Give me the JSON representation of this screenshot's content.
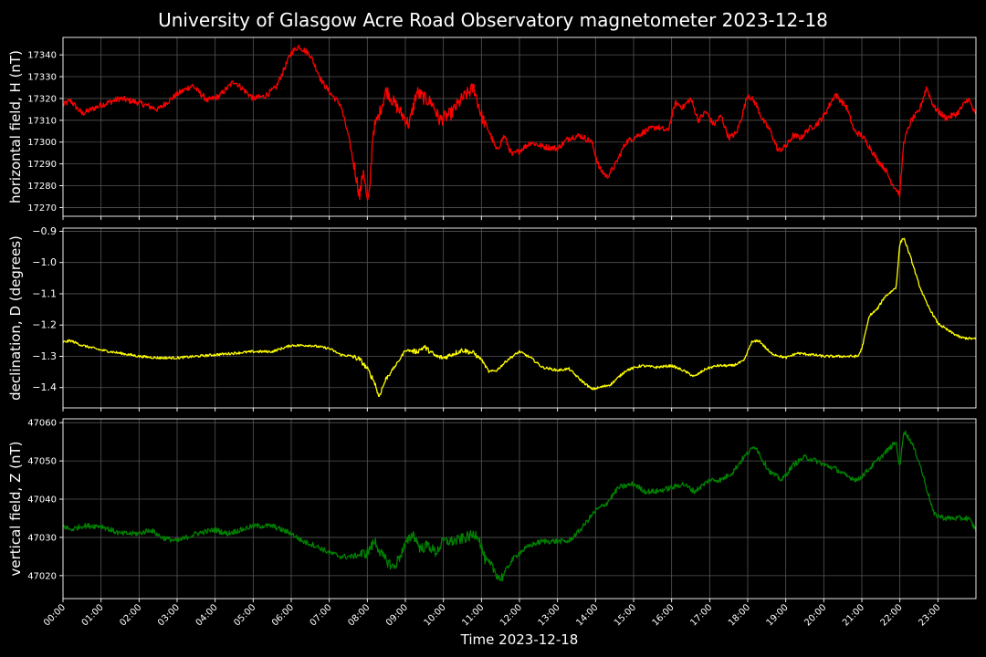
{
  "title": "University of Glasgow Acre Road Observatory magnetometer 2023-12-18",
  "xlabel": "Time 2023-12-18",
  "x_tick_labels": [
    "00:00",
    "01:00",
    "02:00",
    "03:00",
    "04:00",
    "05:00",
    "06:00",
    "07:00",
    "08:00",
    "09:00",
    "10:00",
    "11:00",
    "12:00",
    "13:00",
    "14:00",
    "15:00",
    "16:00",
    "17:00",
    "18:00",
    "19:00",
    "20:00",
    "21:00",
    "22:00",
    "23:00"
  ],
  "chart_data": [
    {
      "type": "line",
      "ylabel": "horizontal field, H (nT)",
      "color": "#ff0000",
      "xlim_hours": [
        0,
        24
      ],
      "ylim": [
        17266,
        17348
      ],
      "yticks": [
        17270,
        17280,
        17290,
        17300,
        17310,
        17320,
        17330,
        17340
      ],
      "grid": true,
      "x_hours": [
        0,
        0.2,
        0.5,
        1,
        1.5,
        2,
        2.5,
        3,
        3.4,
        3.8,
        4.1,
        4.5,
        5,
        5.3,
        5.6,
        6,
        6.2,
        6.5,
        6.8,
        7,
        7.3,
        7.5,
        7.7,
        7.8,
        7.9,
        8,
        8.05,
        8.15,
        8.3,
        8.5,
        8.7,
        8.9,
        9.1,
        9.3,
        9.5,
        9.7,
        9.9,
        10.2,
        10.5,
        10.8,
        11,
        11.2,
        11.4,
        11.6,
        11.8,
        12,
        12.3,
        12.6,
        13,
        13.3,
        13.6,
        13.9,
        14.1,
        14.3,
        14.5,
        14.8,
        15,
        15.3,
        15.6,
        15.9,
        16.1,
        16.3,
        16.5,
        16.7,
        16.9,
        17.1,
        17.3,
        17.5,
        17.7,
        17.85,
        18,
        18.2,
        18.4,
        18.6,
        18.8,
        19,
        19.2,
        19.4,
        19.6,
        19.8,
        20,
        20.3,
        20.6,
        20.8,
        21,
        21.2,
        21.4,
        21.6,
        21.8,
        22,
        22.1,
        22.3,
        22.5,
        22.7,
        22.9,
        23.2,
        23.5,
        23.8,
        24
      ],
      "values": [
        17317,
        17319,
        17313,
        17317,
        17320,
        17318,
        17315,
        17322,
        17326,
        17319,
        17321,
        17328,
        17320,
        17321,
        17325,
        17341,
        17344,
        17340,
        17328,
        17323,
        17317,
        17303,
        17285,
        17275,
        17288,
        17272,
        17275,
        17305,
        17312,
        17324,
        17318,
        17313,
        17308,
        17323,
        17320,
        17318,
        17310,
        17313,
        17320,
        17325,
        17312,
        17305,
        17296,
        17303,
        17294,
        17296,
        17300,
        17298,
        17297,
        17302,
        17303,
        17300,
        17288,
        17284,
        17289,
        17300,
        17302,
        17305,
        17307,
        17305,
        17318,
        17316,
        17320,
        17310,
        17314,
        17308,
        17312,
        17302,
        17304,
        17312,
        17322,
        17318,
        17310,
        17305,
        17296,
        17298,
        17303,
        17302,
        17306,
        17308,
        17312,
        17322,
        17316,
        17305,
        17303,
        17298,
        17292,
        17288,
        17281,
        17276,
        17300,
        17310,
        17314,
        17325,
        17316,
        17311,
        17313,
        17320,
        17312
      ]
    },
    {
      "type": "line",
      "ylabel": "declination, D (degrees)",
      "color": "#ffff00",
      "xlim_hours": [
        0,
        24
      ],
      "ylim": [
        -1.465,
        -0.89
      ],
      "yticks": [
        -1.4,
        -1.3,
        -1.2,
        -1.1,
        -1.0,
        -0.9
      ],
      "grid": true,
      "x_hours": [
        0,
        0.2,
        0.5,
        1,
        1.5,
        2,
        2.5,
        3,
        3.5,
        4,
        4.5,
        5,
        5.5,
        6,
        6.5,
        7,
        7.3,
        7.6,
        7.8,
        8,
        8.2,
        8.3,
        8.5,
        8.8,
        9,
        9.3,
        9.5,
        9.8,
        10,
        10.3,
        10.5,
        10.8,
        11,
        11.2,
        11.4,
        11.7,
        12,
        12.3,
        12.6,
        13,
        13.3,
        13.6,
        13.9,
        14.1,
        14.4,
        14.8,
        15.2,
        15.6,
        16,
        16.3,
        16.6,
        16.9,
        17.2,
        17.6,
        17.9,
        18.1,
        18.3,
        18.6,
        19,
        19.3,
        19.7,
        20,
        20.5,
        20.9,
        21,
        21.2,
        21.4,
        21.6,
        21.9,
        22,
        22.1,
        22.3,
        22.5,
        22.7,
        23,
        23.3,
        23.6,
        24
      ],
      "values": [
        -1.255,
        -1.25,
        -1.265,
        -1.28,
        -1.29,
        -1.3,
        -1.305,
        -1.305,
        -1.3,
        -1.295,
        -1.29,
        -1.285,
        -1.285,
        -1.265,
        -1.265,
        -1.275,
        -1.295,
        -1.3,
        -1.31,
        -1.34,
        -1.385,
        -1.43,
        -1.37,
        -1.32,
        -1.28,
        -1.285,
        -1.27,
        -1.3,
        -1.305,
        -1.29,
        -1.28,
        -1.29,
        -1.31,
        -1.35,
        -1.345,
        -1.31,
        -1.285,
        -1.305,
        -1.335,
        -1.345,
        -1.34,
        -1.375,
        -1.405,
        -1.4,
        -1.39,
        -1.345,
        -1.33,
        -1.335,
        -1.33,
        -1.345,
        -1.365,
        -1.34,
        -1.33,
        -1.33,
        -1.315,
        -1.255,
        -1.25,
        -1.29,
        -1.305,
        -1.29,
        -1.295,
        -1.3,
        -1.3,
        -1.3,
        -1.275,
        -1.17,
        -1.15,
        -1.11,
        -1.08,
        -0.94,
        -0.92,
        -0.99,
        -1.07,
        -1.13,
        -1.195,
        -1.22,
        -1.24,
        -1.245
      ]
    },
    {
      "type": "line",
      "ylabel": "vertical field, Z (nT)",
      "color": "#008000",
      "xlim_hours": [
        0,
        24
      ],
      "ylim": [
        47014,
        47061
      ],
      "yticks": [
        47020,
        47030,
        47040,
        47050,
        47060
      ],
      "grid": true,
      "x_hours": [
        0,
        0.2,
        0.5,
        1,
        1.5,
        2,
        2.3,
        2.6,
        3,
        3.5,
        4,
        4.3,
        4.7,
        5,
        5.5,
        6,
        6.3,
        6.6,
        7,
        7.3,
        7.6,
        8,
        8.2,
        8.4,
        8.7,
        9,
        9.2,
        9.4,
        9.6,
        9.8,
        10,
        10.3,
        10.6,
        10.9,
        11.1,
        11.3,
        11.5,
        11.8,
        12,
        12.3,
        12.6,
        13,
        13.3,
        13.6,
        14,
        14.3,
        14.6,
        15,
        15.3,
        15.6,
        16,
        16.3,
        16.6,
        17,
        17.3,
        17.6,
        17.9,
        18.2,
        18.4,
        18.6,
        18.9,
        19.2,
        19.5,
        19.8,
        20,
        20.3,
        20.6,
        20.9,
        21.2,
        21.5,
        21.8,
        21.9,
        22,
        22.1,
        22.3,
        22.5,
        22.7,
        22.9,
        23.2,
        23.5,
        23.8,
        24
      ],
      "values": [
        47033,
        47032,
        47033,
        47033,
        47031,
        47031,
        47032,
        47030,
        47029,
        47031,
        47032,
        47031,
        47032,
        47033,
        47033,
        47031,
        47029,
        47028,
        47026,
        47025,
        47025,
        47026,
        47029,
        47025,
        47022,
        47028,
        47031,
        47027,
        47028,
        47026,
        47029,
        47029,
        47030,
        47031,
        47024,
        47022,
        47019,
        47024,
        47026,
        47028,
        47029,
        47029,
        47029,
        47032,
        47037,
        47039,
        47043,
        47044,
        47042,
        47042,
        47043,
        47044,
        47042,
        47045,
        47045,
        47047,
        47051,
        47054,
        47050,
        47047,
        47045,
        47049,
        47051,
        47050,
        47049,
        47048,
        47046,
        47045,
        47048,
        47051,
        47054,
        47055,
        47048,
        47058,
        47055,
        47050,
        47043,
        47036,
        47035,
        47035,
        47035,
        47032
      ]
    }
  ]
}
